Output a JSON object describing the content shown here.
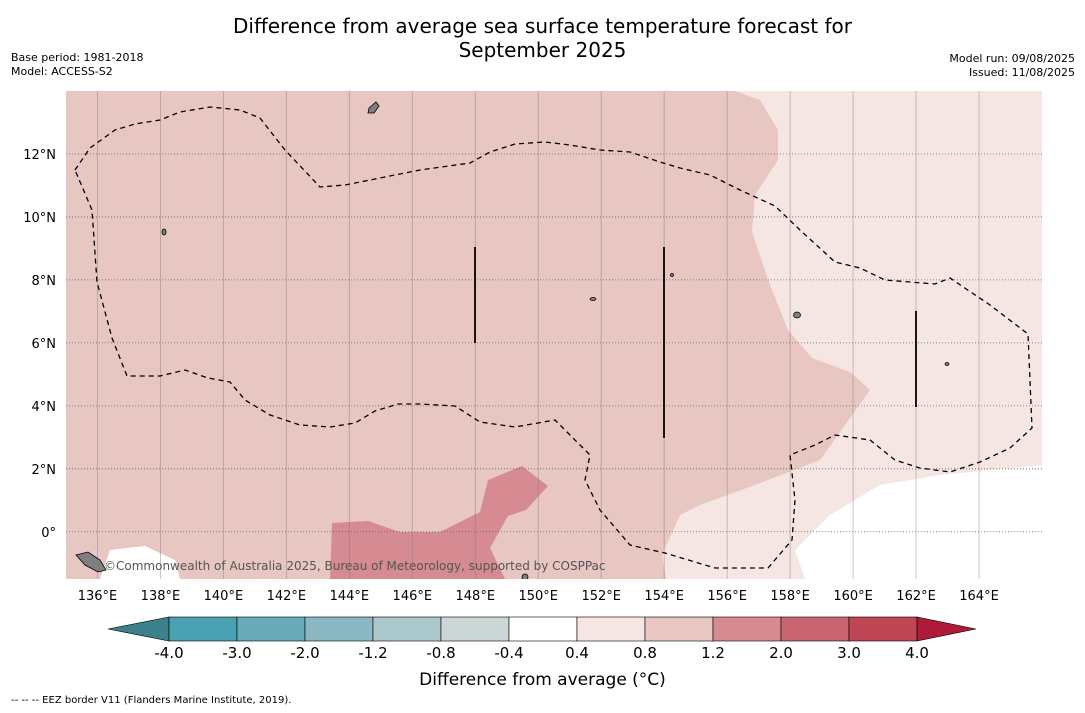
{
  "header": {
    "title_line1": "Difference from average sea surface temperature forecast for",
    "title_line2": "September 2025",
    "base_period": "Base period: 1981-2018",
    "model": "Model: ACCESS-S2",
    "model_run": "Model run: 09/08/2025",
    "issued": "Issued: 11/08/2025"
  },
  "map": {
    "lon_range": [
      135,
      166
    ],
    "lat_range": [
      -1.5,
      14
    ],
    "lon_ticks": [
      "136°E",
      "138°E",
      "140°E",
      "142°E",
      "144°E",
      "146°E",
      "148°E",
      "150°E",
      "152°E",
      "154°E",
      "156°E",
      "158°E",
      "160°E",
      "162°E",
      "164°E"
    ],
    "lat_ticks": [
      "12°N",
      "10°N",
      "8°N",
      "6°N",
      "4°N",
      "2°N",
      "0°"
    ],
    "credit": "©Commonwealth of Australia 2025, Bureau of Meteorology, supported by COSPPac",
    "colors": {
      "band_0.8_1.2": "#e8c6c1",
      "band_0.4_0.8": "#f5e6e3",
      "band_1.2_2.0": "#d68b92",
      "band_neutral": "#ffffff",
      "land": "#7f7f7f"
    }
  },
  "colorbar": {
    "title": "Difference from average (°C)",
    "labels": [
      "-4.0",
      "-3.0",
      "-2.0",
      "-1.2",
      "-0.8",
      "-0.4",
      "0.4",
      "0.8",
      "1.2",
      "2.0",
      "3.0",
      "4.0"
    ],
    "colors": [
      "#3c818a",
      "#4aa1b2",
      "#6aabba",
      "#8bb8c3",
      "#abc9cd",
      "#ccd6d6",
      "#ffffff",
      "#f5e6e3",
      "#e8c6c1",
      "#d68b92",
      "#c96570",
      "#be4655",
      "#ad1a3a"
    ]
  },
  "footnote": "--  --  -- EEZ border V11 (Flanders Marine Institute, 2019)."
}
